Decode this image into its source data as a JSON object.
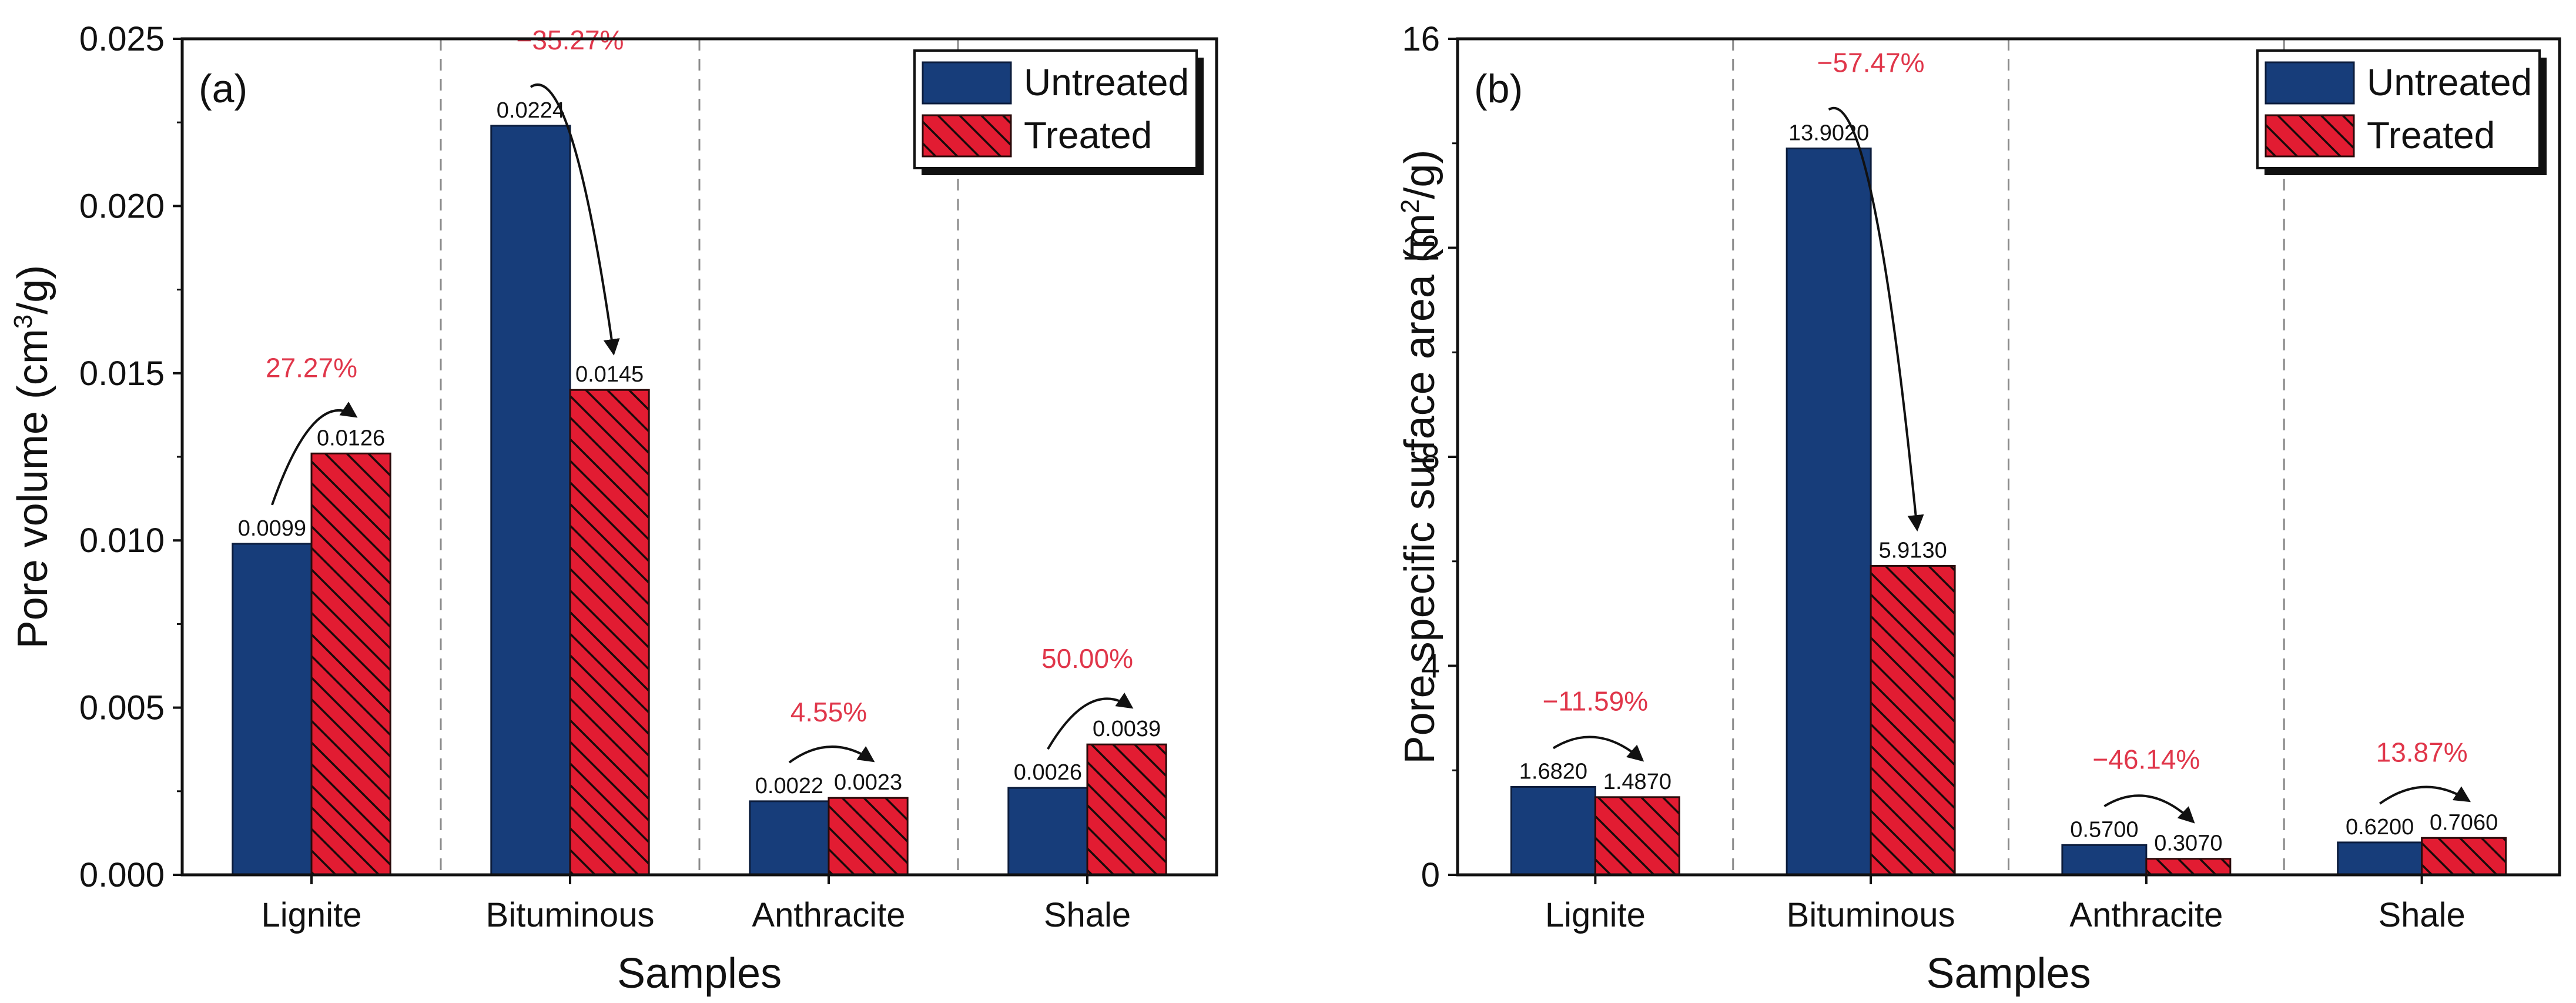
{
  "colors": {
    "untreated": "#173d7a",
    "treated": "#e21c32",
    "annotation": "#e0364a",
    "axis": "#111111",
    "divider": "#8a8a8a"
  },
  "chart_data": [
    {
      "type": "bar",
      "panel_label": "(a)",
      "xlabel": "Samples",
      "ylabel_main": "Pore volume (cm",
      "ylabel_sup": "3",
      "ylabel_tail": "/g)",
      "ylim": [
        0,
        0.025
      ],
      "yticks": [
        "0.000",
        "0.005",
        "0.010",
        "0.015",
        "0.020",
        "0.025"
      ],
      "categories": [
        "Lignite",
        "Bituminous",
        "Anthracite",
        "Shale"
      ],
      "series": [
        {
          "name": "Untreated",
          "values": [
            0.0099,
            0.0224,
            0.0022,
            0.0026
          ],
          "labels": [
            "0.0099",
            "0.0224",
            "0.0022",
            "0.0026"
          ]
        },
        {
          "name": "Treated",
          "values": [
            0.0126,
            0.0145,
            0.0023,
            0.0039
          ],
          "labels": [
            "0.0126",
            "0.0145",
            "0.0023",
            "0.0039"
          ]
        }
      ],
      "annotations": [
        "27.27%",
        "−35.27%",
        "4.55%",
        "50.00%"
      ],
      "legend_position": "top-right",
      "category_dividers": true
    },
    {
      "type": "bar",
      "panel_label": "(b)",
      "xlabel": "Samples",
      "ylabel_main": "Pore specific surface area (m",
      "ylabel_sup": "2",
      "ylabel_tail": "/g)",
      "ylim": [
        0,
        16
      ],
      "yticks": [
        "0",
        "4",
        "8",
        "12",
        "16"
      ],
      "categories": [
        "Lignite",
        "Bituminous",
        "Anthracite",
        "Shale"
      ],
      "series": [
        {
          "name": "Untreated",
          "values": [
            1.682,
            13.902,
            0.57,
            0.62
          ],
          "labels": [
            "1.6820",
            "13.9020",
            "0.5700",
            "0.6200"
          ]
        },
        {
          "name": "Treated",
          "values": [
            1.487,
            5.913,
            0.307,
            0.706
          ],
          "labels": [
            "1.4870",
            "5.9130",
            "0.3070",
            "0.7060"
          ]
        }
      ],
      "annotations": [
        "−11.59%",
        "−57.47%",
        "−46.14%",
        "13.87%"
      ],
      "legend_position": "top-right",
      "category_dividers": true
    }
  ]
}
